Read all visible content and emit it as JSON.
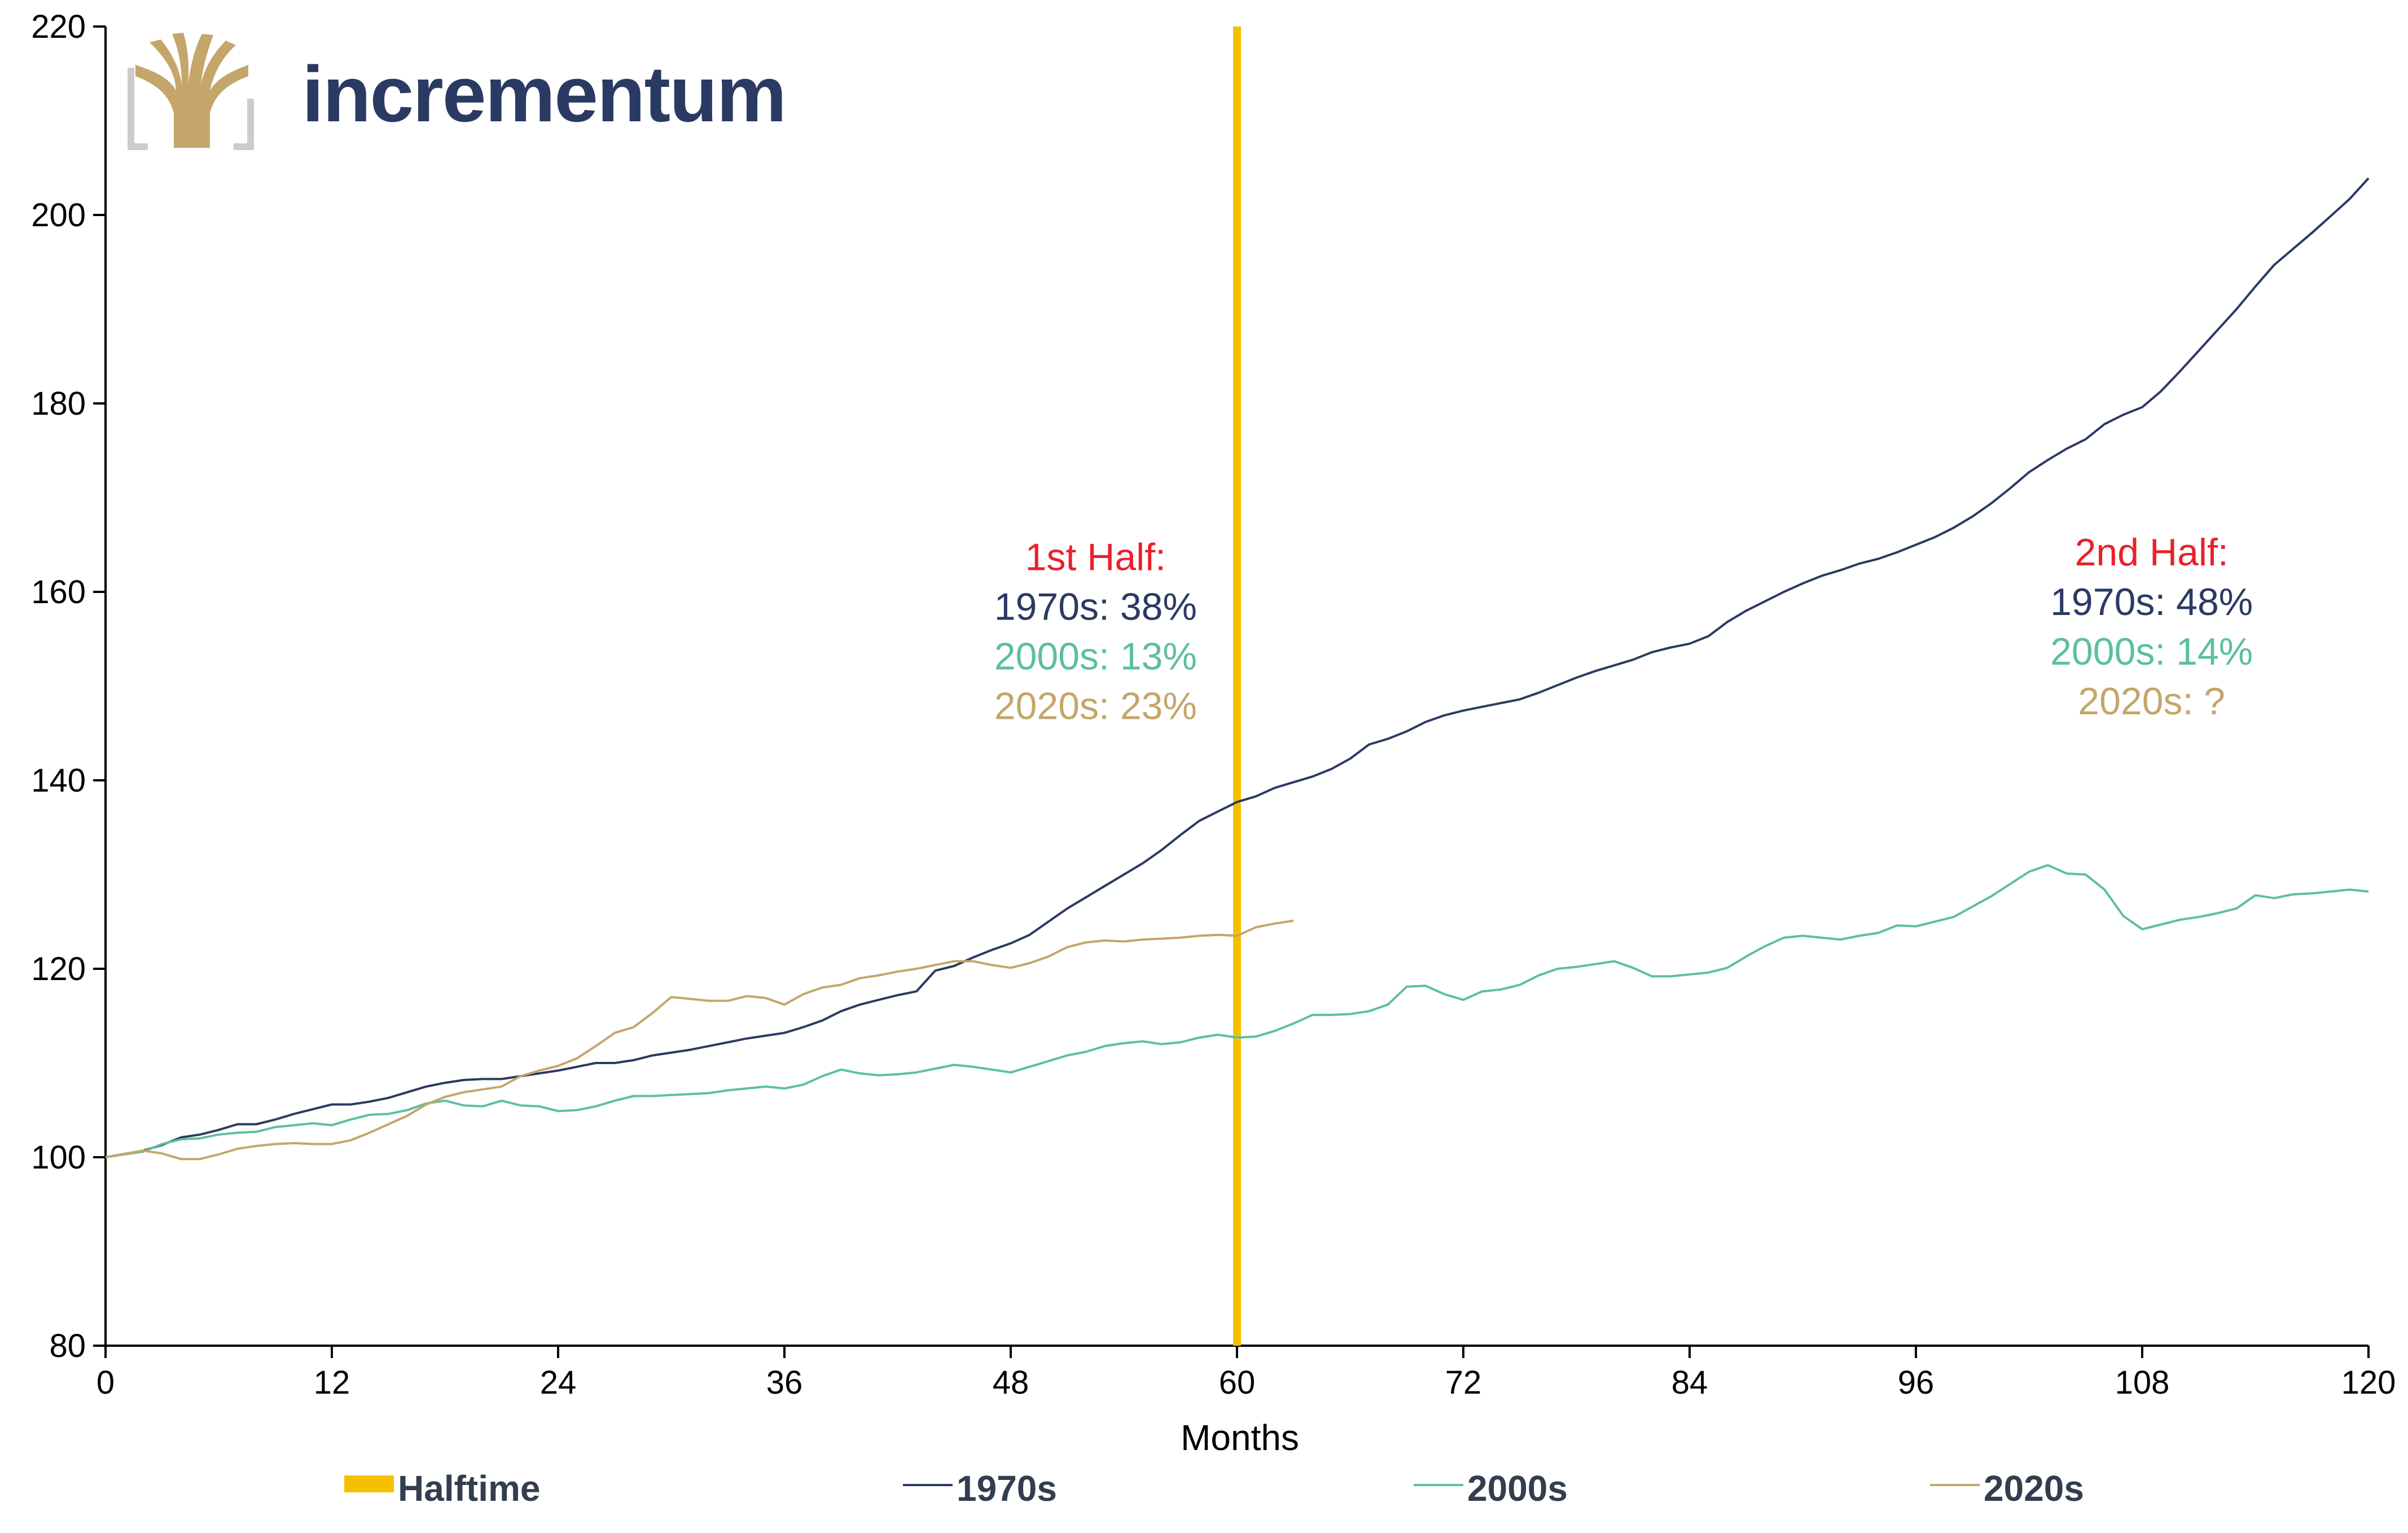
{
  "brand": {
    "name": "incrementum",
    "logo_icon": "tree-logo-icon",
    "colors": {
      "gold": "#c4a66b",
      "navy": "#2b3a63",
      "bracket": "#cccccc"
    }
  },
  "chart_data": {
    "type": "line",
    "title": "",
    "xlabel": "Months",
    "ylabel": "",
    "xlim": [
      0,
      120
    ],
    "ylim": [
      80,
      220
    ],
    "x_ticks": [
      0,
      12,
      24,
      36,
      48,
      60,
      72,
      84,
      96,
      108,
      120
    ],
    "y_ticks": [
      80,
      100,
      120,
      140,
      160,
      180,
      200,
      220
    ],
    "grid": false,
    "legend_position": "bottom",
    "halftime": {
      "name": "Halftime",
      "x": 60,
      "color": "#f5c000"
    },
    "series": [
      {
        "name": "1970s",
        "color": "#2b3a63",
        "x": [
          0,
          2,
          3,
          4,
          5,
          6,
          7,
          8,
          9,
          10,
          11,
          12,
          13,
          14,
          15,
          16,
          17,
          18,
          19,
          20,
          21,
          22,
          23,
          24,
          25,
          26,
          27,
          28,
          29,
          30,
          31,
          32,
          33,
          34,
          35,
          36,
          37,
          38,
          39,
          40,
          41,
          42,
          43,
          44,
          45,
          46,
          47,
          48,
          49,
          50,
          51,
          52,
          53,
          54,
          55,
          56,
          57,
          58,
          59,
          60,
          61,
          62,
          63,
          64,
          65,
          66,
          67,
          68,
          69,
          70,
          71,
          72,
          73,
          74,
          75,
          76,
          77,
          78,
          79,
          80,
          81,
          82,
          83,
          84,
          85,
          86,
          87,
          88,
          89,
          90,
          91,
          92,
          93,
          94,
          95,
          96,
          97,
          98,
          99,
          100,
          101,
          102,
          103,
          104,
          105,
          106,
          107,
          108,
          109,
          110,
          111,
          112,
          113,
          114,
          115,
          116,
          117,
          118,
          119,
          120
        ],
        "values": [
          100,
          100.7,
          101.3,
          102.1,
          102.4,
          102.9,
          103.5,
          103.5,
          104.0,
          104.6,
          105.1,
          105.6,
          105.6,
          105.9,
          106.3,
          106.9,
          107.5,
          107.9,
          108.2,
          108.3,
          108.3,
          108.6,
          108.9,
          109.2,
          109.6,
          110.0,
          110.0,
          110.3,
          110.8,
          111.1,
          111.4,
          111.8,
          112.2,
          112.6,
          112.9,
          113.2,
          113.8,
          114.5,
          115.5,
          116.2,
          116.7,
          117.2,
          117.6,
          119.8,
          120.3,
          121.2,
          122.0,
          122.7,
          123.6,
          125.0,
          126.4,
          127.6,
          128.8,
          130.0,
          131.2,
          132.6,
          134.2,
          135.7,
          136.7,
          137.7,
          138.3,
          139.2,
          139.8,
          140.4,
          141.2,
          142.3,
          143.8,
          144.4,
          145.2,
          146.2,
          146.9,
          147.4,
          147.8,
          148.2,
          148.6,
          149.3,
          150.1,
          150.9,
          151.6,
          152.2,
          152.8,
          153.6,
          154.1,
          154.5,
          155.3,
          156.8,
          158.0,
          159.0,
          160.0,
          160.9,
          161.7,
          162.3,
          163.0,
          163.5,
          164.2,
          165.0,
          165.8,
          166.8,
          168.0,
          169.4,
          171.0,
          172.7,
          174.0,
          175.2,
          176.2,
          177.8,
          178.8,
          179.6,
          181.3,
          183.4,
          185.6,
          187.8,
          190.0,
          192.4,
          194.7,
          196.4,
          198.1,
          199.9,
          201.7,
          203.9
        ]
      },
      {
        "name": "2000s",
        "color": "#5dbf9f",
        "x": [
          0,
          2,
          3,
          4,
          5,
          6,
          7,
          8,
          9,
          10,
          11,
          12,
          13,
          14,
          15,
          16,
          17,
          18,
          19,
          20,
          21,
          22,
          23,
          24,
          25,
          26,
          27,
          28,
          29,
          30,
          31,
          32,
          33,
          34,
          35,
          36,
          37,
          38,
          39,
          40,
          41,
          42,
          43,
          44,
          45,
          46,
          47,
          48,
          49,
          50,
          51,
          52,
          53,
          54,
          55,
          56,
          57,
          58,
          59,
          60,
          61,
          62,
          63,
          64,
          65,
          66,
          67,
          68,
          69,
          70,
          71,
          72,
          73,
          74,
          75,
          76,
          77,
          78,
          79,
          80,
          81,
          82,
          83,
          84,
          85,
          86,
          87,
          88,
          89,
          90,
          91,
          92,
          93,
          94,
          95,
          96,
          97,
          98,
          99,
          100,
          101,
          102,
          103,
          104,
          105,
          106,
          107,
          108,
          109,
          110,
          111,
          112,
          113,
          114,
          115,
          116,
          117,
          118,
          119,
          120
        ],
        "values": [
          100,
          100.6,
          101.4,
          101.9,
          102.0,
          102.4,
          102.6,
          102.7,
          103.2,
          103.4,
          103.6,
          103.4,
          104.0,
          104.5,
          104.6,
          105.0,
          105.7,
          106.0,
          105.5,
          105.4,
          106.0,
          105.5,
          105.4,
          104.9,
          105.0,
          105.4,
          106.0,
          106.5,
          106.5,
          106.6,
          106.7,
          106.8,
          107.1,
          107.3,
          107.5,
          107.3,
          107.7,
          108.6,
          109.3,
          108.9,
          108.7,
          108.8,
          109.0,
          109.4,
          109.8,
          109.6,
          109.3,
          109.0,
          109.6,
          110.2,
          110.8,
          111.2,
          111.8,
          112.1,
          112.3,
          112.0,
          112.2,
          112.7,
          113.0,
          112.7,
          112.8,
          113.4,
          114.2,
          115.1,
          115.1,
          115.2,
          115.5,
          116.2,
          118.1,
          118.2,
          117.3,
          116.7,
          117.6,
          117.8,
          118.3,
          119.3,
          120.0,
          120.2,
          120.5,
          120.8,
          120.1,
          119.2,
          119.2,
          119.4,
          119.6,
          120.1,
          121.3,
          122.4,
          123.3,
          123.5,
          123.3,
          123.1,
          123.5,
          123.8,
          124.6,
          124.5,
          125.0,
          125.5,
          126.6,
          127.7,
          129.0,
          130.3,
          131.0,
          130.1,
          130.0,
          128.4,
          125.6,
          124.2,
          124.7,
          125.2,
          125.5,
          125.9,
          126.4,
          127.8,
          127.5,
          127.9,
          128.0,
          128.2,
          128.4,
          128.2
        ]
      },
      {
        "name": "2020s",
        "color": "#c4a66b",
        "x": [
          0,
          2,
          3,
          4,
          5,
          6,
          7,
          8,
          9,
          10,
          11,
          12,
          13,
          14,
          15,
          16,
          17,
          18,
          19,
          20,
          21,
          22,
          23,
          24,
          25,
          26,
          27,
          28,
          29,
          30,
          31,
          32,
          33,
          34,
          35,
          36,
          37,
          38,
          39,
          40,
          41,
          42,
          43,
          44,
          45,
          46,
          47,
          48,
          49,
          50,
          51,
          52,
          53,
          54,
          55,
          56,
          57,
          58,
          59,
          60,
          61,
          62,
          63
        ],
        "values": [
          100,
          100.7,
          100.4,
          99.8,
          99.8,
          100.3,
          100.9,
          101.2,
          101.4,
          101.5,
          101.4,
          101.4,
          101.8,
          102.6,
          103.5,
          104.4,
          105.6,
          106.4,
          106.9,
          107.2,
          107.5,
          108.6,
          109.2,
          109.7,
          110.5,
          111.8,
          113.2,
          113.8,
          115.3,
          117.0,
          116.8,
          116.6,
          116.6,
          117.1,
          116.9,
          116.2,
          117.3,
          118.0,
          118.3,
          119.0,
          119.3,
          119.7,
          120.0,
          120.4,
          120.8,
          120.8,
          120.4,
          120.1,
          120.6,
          121.3,
          122.3,
          122.8,
          123.0,
          122.9,
          123.1,
          123.2,
          123.3,
          123.5,
          123.6,
          123.5,
          124.4,
          124.8,
          125.1
        ]
      }
    ],
    "annotations": [
      {
        "anchor_x": 52.5,
        "anchor_y": 162.3,
        "lines": [
          {
            "text": "1st Half:",
            "color": "#e8212a"
          },
          {
            "text": "1970s: 38%",
            "color": "#2b3a63"
          },
          {
            "text": "2000s: 13%",
            "color": "#5dbf9f"
          },
          {
            "text": "2020s: 23%",
            "color": "#c4a66b"
          }
        ]
      },
      {
        "anchor_x": 108.5,
        "anchor_y": 162.8,
        "lines": [
          {
            "text": "2nd Half:",
            "color": "#e8212a"
          },
          {
            "text": "1970s: 48%",
            "color": "#2b3a63"
          },
          {
            "text": "2000s: 14%",
            "color": "#5dbf9f"
          },
          {
            "text": "2020s: ?",
            "color": "#c4a66b"
          }
        ]
      }
    ]
  }
}
